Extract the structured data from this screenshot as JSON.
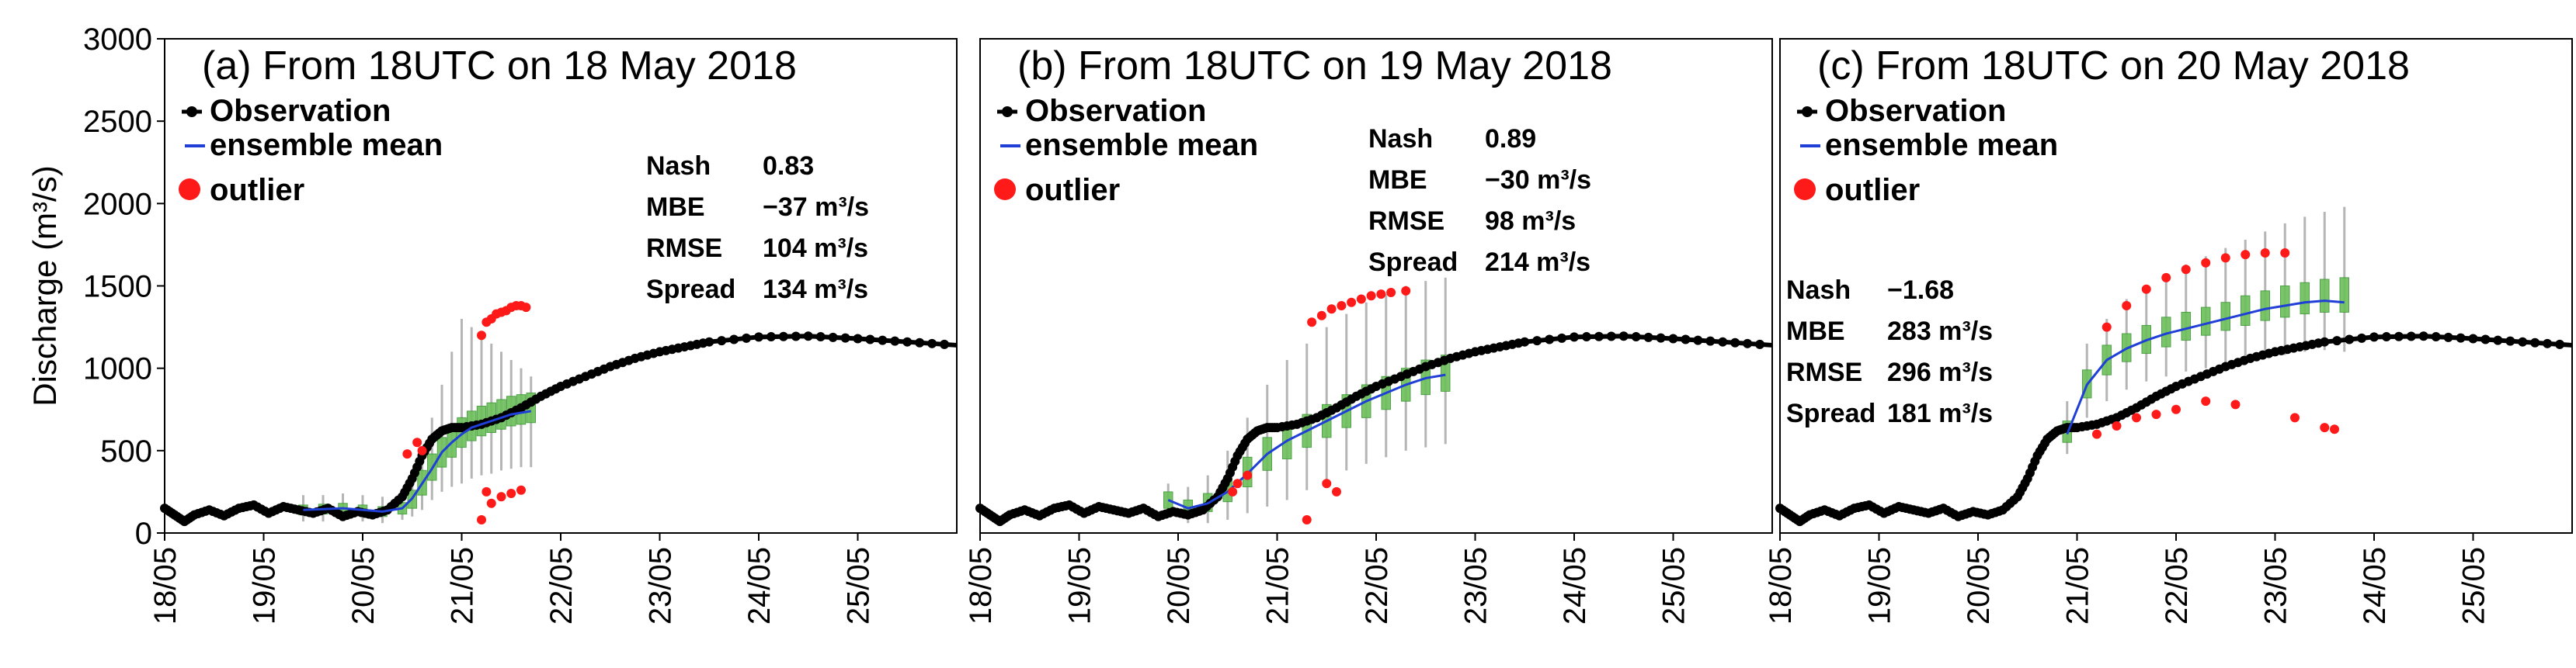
{
  "chart_data": [
    {
      "type": "line",
      "panel": "a",
      "title": "(a) From 18UTC on 18 May 2018",
      "ylabel": "Discharge (m³/s)",
      "ylim": [
        0,
        3000
      ],
      "xlim": [
        0,
        8
      ],
      "xticks": [
        "18/05",
        "19/05",
        "20/05",
        "21/05",
        "22/05",
        "23/05",
        "24/05",
        "25/05"
      ],
      "yticks": [
        "0",
        "500",
        "1000",
        "1500",
        "2000",
        "2500",
        "3000"
      ],
      "legend": [
        "Observation",
        "ensemble mean",
        "outlier"
      ],
      "stats": [
        {
          "label": "Nash",
          "value": "0.83"
        },
        {
          "label": "MBE",
          "value": "−37 m³/s"
        },
        {
          "label": "RMSE",
          "value": "104 m³/s"
        },
        {
          "label": "Spread",
          "value": "134 m³/s"
        }
      ],
      "observation": {
        "x": [
          0,
          0.1,
          0.2,
          0.3,
          0.45,
          0.6,
          0.75,
          0.9,
          1.05,
          1.2,
          1.35,
          1.5,
          1.65,
          1.8,
          1.95,
          2.1,
          2.25,
          2.4,
          2.5,
          2.6,
          2.7,
          2.8,
          2.9,
          3.0,
          3.2,
          3.4,
          3.6,
          3.8,
          4.0,
          4.25,
          4.5,
          4.75,
          5.0,
          5.25,
          5.5,
          6.0,
          6.5,
          7.0,
          7.5,
          8.0
        ],
        "y": [
          150,
          110,
          70,
          110,
          140,
          105,
          150,
          170,
          120,
          160,
          140,
          120,
          150,
          100,
          130,
          110,
          140,
          220,
          330,
          470,
          570,
          620,
          640,
          640,
          660,
          700,
          760,
          830,
          890,
          950,
          1010,
          1060,
          1100,
          1130,
          1160,
          1190,
          1195,
          1180,
          1160,
          1140
        ]
      },
      "ensemble": {
        "x": [
          1.4,
          1.6,
          1.8,
          2.0,
          2.2,
          2.4,
          2.5,
          2.6,
          2.7,
          2.8,
          2.9,
          3.0,
          3.1,
          3.2,
          3.3,
          3.4,
          3.5,
          3.6,
          3.7
        ],
        "mean": [
          140,
          145,
          150,
          140,
          130,
          150,
          210,
          300,
          390,
          490,
          550,
          600,
          640,
          660,
          680,
          700,
          720,
          730,
          740
        ],
        "q25": [
          110,
          115,
          120,
          110,
          100,
          115,
          150,
          230,
          320,
          400,
          460,
          520,
          560,
          590,
          610,
          630,
          650,
          660,
          670
        ],
        "q75": [
          170,
          175,
          180,
          170,
          160,
          185,
          260,
          380,
          480,
          580,
          650,
          700,
          740,
          770,
          790,
          810,
          830,
          840,
          850
        ],
        "min": [
          70,
          70,
          80,
          70,
          60,
          80,
          100,
          140,
          200,
          250,
          280,
          300,
          330,
          350,
          360,
          380,
          390,
          400,
          400
        ],
        "max": [
          230,
          230,
          240,
          230,
          220,
          260,
          360,
          520,
          700,
          900,
          1100,
          1300,
          1250,
          1200,
          1150,
          1100,
          1050,
          1000,
          950
        ]
      },
      "outliers": {
        "x": [
          2.45,
          2.55,
          2.6,
          3.2,
          3.25,
          3.3,
          3.35,
          3.4,
          3.45,
          3.5,
          3.55,
          3.6,
          3.65,
          3.25,
          3.3,
          3.4,
          3.5,
          3.6,
          3.2
        ],
        "y": [
          480,
          550,
          500,
          1200,
          1280,
          1300,
          1330,
          1340,
          1350,
          1370,
          1380,
          1380,
          1370,
          250,
          180,
          220,
          240,
          260,
          80
        ]
      }
    },
    {
      "type": "line",
      "panel": "b",
      "title": "(b) From 18UTC on 19 May 2018",
      "ylim": [
        0,
        3000
      ],
      "xlim": [
        0,
        8
      ],
      "xticks": [
        "18/05",
        "19/05",
        "20/05",
        "21/05",
        "22/05",
        "23/05",
        "24/05",
        "25/05"
      ],
      "legend": [
        "Observation",
        "ensemble mean",
        "outlier"
      ],
      "stats": [
        {
          "label": "Nash",
          "value": "0.89"
        },
        {
          "label": "MBE",
          "value": "−30 m³/s"
        },
        {
          "label": "RMSE",
          "value": "98 m³/s"
        },
        {
          "label": "Spread",
          "value": "214 m³/s"
        }
      ],
      "observation": {
        "x": [
          0,
          0.1,
          0.2,
          0.3,
          0.45,
          0.6,
          0.75,
          0.9,
          1.05,
          1.2,
          1.35,
          1.5,
          1.65,
          1.8,
          1.95,
          2.1,
          2.25,
          2.4,
          2.5,
          2.6,
          2.7,
          2.8,
          2.9,
          3.0,
          3.2,
          3.4,
          3.6,
          3.8,
          4.0,
          4.25,
          4.5,
          4.75,
          5.0,
          5.25,
          5.5,
          6.0,
          6.5,
          7.0,
          7.5,
          8.0
        ],
        "y": [
          150,
          110,
          70,
          110,
          140,
          105,
          150,
          170,
          120,
          160,
          140,
          120,
          150,
          100,
          130,
          110,
          140,
          220,
          330,
          470,
          570,
          620,
          640,
          640,
          660,
          700,
          760,
          830,
          890,
          950,
          1010,
          1060,
          1100,
          1130,
          1160,
          1190,
          1195,
          1180,
          1160,
          1140
        ]
      },
      "ensemble": {
        "x": [
          1.9,
          2.1,
          2.3,
          2.5,
          2.7,
          2.9,
          3.1,
          3.3,
          3.5,
          3.7,
          3.9,
          4.1,
          4.3,
          4.5,
          4.7
        ],
        "mean": [
          200,
          150,
          180,
          250,
          360,
          480,
          560,
          620,
          680,
          740,
          800,
          850,
          900,
          940,
          960
        ],
        "q25": [
          150,
          110,
          130,
          190,
          280,
          380,
          450,
          520,
          580,
          640,
          700,
          750,
          800,
          840,
          860
        ],
        "q75": [
          250,
          200,
          240,
          330,
          460,
          580,
          660,
          720,
          780,
          840,
          900,
          950,
          1000,
          1050,
          1080
        ],
        "min": [
          100,
          60,
          60,
          80,
          120,
          160,
          200,
          260,
          320,
          380,
          420,
          460,
          500,
          520,
          540
        ],
        "max": [
          300,
          280,
          350,
          500,
          700,
          900,
          1050,
          1150,
          1250,
          1330,
          1400,
          1450,
          1500,
          1530,
          1550
        ]
      },
      "outliers": {
        "x": [
          2.55,
          2.6,
          2.7,
          3.35,
          3.45,
          3.55,
          3.65,
          3.75,
          3.85,
          3.95,
          4.05,
          4.15,
          4.3,
          3.5,
          3.6,
          3.3
        ],
        "y": [
          250,
          300,
          350,
          1280,
          1320,
          1360,
          1380,
          1400,
          1420,
          1440,
          1450,
          1460,
          1470,
          300,
          250,
          80
        ]
      }
    },
    {
      "type": "line",
      "panel": "c",
      "title": "(c) From 18UTC on 20 May 2018",
      "ylim": [
        0,
        3000
      ],
      "xlim": [
        0,
        8
      ],
      "xticks": [
        "18/05",
        "19/05",
        "20/05",
        "21/05",
        "22/05",
        "23/05",
        "24/05",
        "25/05"
      ],
      "legend": [
        "Observation",
        "ensemble mean",
        "outlier"
      ],
      "stats": [
        {
          "label": "Nash",
          "value": "−1.68"
        },
        {
          "label": "MBE",
          "value": "283 m³/s"
        },
        {
          "label": "RMSE",
          "value": "296 m³/s"
        },
        {
          "label": "Spread",
          "value": "181 m³/s"
        }
      ],
      "observation": {
        "x": [
          0,
          0.1,
          0.2,
          0.3,
          0.45,
          0.6,
          0.75,
          0.9,
          1.05,
          1.2,
          1.35,
          1.5,
          1.65,
          1.8,
          1.95,
          2.1,
          2.25,
          2.4,
          2.5,
          2.6,
          2.7,
          2.8,
          2.9,
          3.0,
          3.2,
          3.4,
          3.6,
          3.8,
          4.0,
          4.25,
          4.5,
          4.75,
          5.0,
          5.25,
          5.5,
          6.0,
          6.5,
          7.0,
          7.5,
          8.0
        ],
        "y": [
          150,
          110,
          70,
          110,
          140,
          105,
          150,
          170,
          120,
          160,
          140,
          120,
          150,
          100,
          130,
          110,
          140,
          220,
          330,
          470,
          570,
          620,
          640,
          640,
          660,
          700,
          760,
          830,
          890,
          950,
          1010,
          1060,
          1100,
          1130,
          1160,
          1190,
          1195,
          1180,
          1160,
          1140
        ]
      },
      "ensemble": {
        "x": [
          2.9,
          3.1,
          3.3,
          3.5,
          3.7,
          3.9,
          4.1,
          4.3,
          4.5,
          4.7,
          4.9,
          5.1,
          5.3,
          5.5,
          5.7
        ],
        "mean": [
          600,
          900,
          1050,
          1120,
          1170,
          1210,
          1240,
          1270,
          1300,
          1330,
          1360,
          1380,
          1400,
          1410,
          1400
        ],
        "q25": [
          550,
          820,
          960,
          1040,
          1090,
          1130,
          1170,
          1200,
          1230,
          1260,
          1290,
          1310,
          1330,
          1340,
          1340
        ],
        "q75": [
          680,
          990,
          1140,
          1210,
          1260,
          1310,
          1340,
          1370,
          1400,
          1440,
          1470,
          1500,
          1520,
          1540,
          1550
        ],
        "min": [
          480,
          700,
          800,
          870,
          920,
          950,
          980,
          1000,
          1020,
          1040,
          1060,
          1080,
          1100,
          1110,
          1100
        ],
        "max": [
          800,
          1150,
          1300,
          1420,
          1500,
          1570,
          1630,
          1680,
          1730,
          1780,
          1830,
          1880,
          1920,
          1950,
          1980
        ]
      },
      "outliers": {
        "x": [
          3.3,
          3.5,
          3.7,
          3.9,
          4.1,
          4.3,
          4.5,
          4.7,
          4.9,
          5.1,
          3.2,
          3.4,
          3.6,
          3.8,
          4.0,
          4.3,
          4.6,
          5.2,
          5.5,
          5.6
        ],
        "y": [
          1250,
          1380,
          1480,
          1550,
          1600,
          1640,
          1670,
          1690,
          1700,
          1700,
          600,
          650,
          700,
          720,
          750,
          800,
          780,
          700,
          640,
          630
        ]
      }
    }
  ]
}
